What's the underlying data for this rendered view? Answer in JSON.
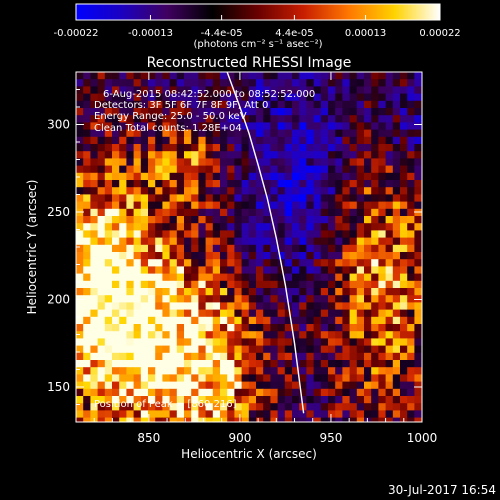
{
  "chart_data": {
    "type": "heatmap",
    "title": "Reconstructed RHESSI Image",
    "xlabel": "Heliocentric X (arcsec)",
    "ylabel": "Heliocentric Y (arcsec)",
    "xlim": [
      810,
      1000
    ],
    "ylim": [
      130,
      330
    ],
    "xticks": [
      "850",
      "900",
      "950",
      "1000"
    ],
    "xtick_values": [
      850,
      900,
      950,
      1000
    ],
    "yticks": [
      "150",
      "200",
      "250",
      "300"
    ],
    "ytick_values": [
      150,
      200,
      250,
      300
    ],
    "colorbar": {
      "ticks": [
        "-0.00022",
        "-0.00013",
        "-4.4e-05",
        "4.4e-05",
        "0.00013",
        "0.00022"
      ],
      "tick_values": [
        -0.00022,
        -0.00013,
        -4.4e-05,
        4.4e-05,
        0.00013,
        0.00022
      ],
      "range": [
        -0.00022,
        0.00022
      ],
      "units_label": "(photons cm⁻² s⁻¹ asec⁻²)",
      "colormap": [
        "#0000ff",
        "#1a00c0",
        "#400060",
        "#000000",
        "#6a0000",
        "#c81e00",
        "#ff7800",
        "#ffd200",
        "#ffffff"
      ]
    },
    "annotations": [
      "6-Aug-2015 08:42:52.000 to 08:52:52.000",
      "Detectors: 3F 5F 6F 7F 8F 9F, Att 0",
      "Energy Range: 25.0 - 50.0 keV",
      "Clean    Total counts: 1.28E+04"
    ],
    "peak_label": "Position of Peak = [860,216]",
    "peak_position": [
      860,
      216
    ],
    "limb_curve_x": [
      893,
      900,
      905,
      910,
      915,
      920,
      925,
      930,
      935
    ],
    "limb_curve_y": [
      330,
      310,
      295,
      277,
      258,
      235,
      208,
      175,
      135
    ],
    "grid": false
  },
  "footer": {
    "timestamp": "30-Jul-2017 16:54"
  }
}
